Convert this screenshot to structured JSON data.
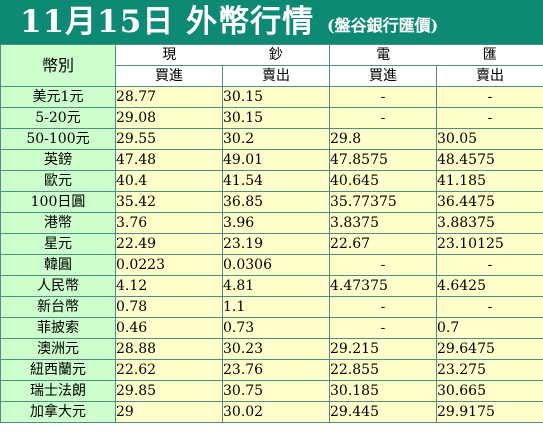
{
  "header": {
    "title": "11月15日 外幣行情",
    "subtitle": "(盤谷銀行匯價)"
  },
  "table": {
    "corner_label": "幣別",
    "cash_group": [
      "現",
      "鈔"
    ],
    "wire_group": [
      "電",
      "匯"
    ],
    "sub_headers": [
      "買進",
      "賣出",
      "買進",
      "賣出"
    ],
    "rows": [
      {
        "name": "美元1元",
        "cash_buy": "28.77",
        "cash_sell": "30.15",
        "wire_buy": "-",
        "wire_sell": "-"
      },
      {
        "name": "5-20元",
        "cash_buy": "29.08",
        "cash_sell": "30.15",
        "wire_buy": "-",
        "wire_sell": "-"
      },
      {
        "name": "50-100元",
        "cash_buy": "29.55",
        "cash_sell": "30.2",
        "wire_buy": "29.8",
        "wire_sell": "30.05"
      },
      {
        "name": "英鎊",
        "cash_buy": "47.48",
        "cash_sell": "49.01",
        "wire_buy": "47.8575",
        "wire_sell": "48.4575"
      },
      {
        "name": "歐元",
        "cash_buy": "40.4",
        "cash_sell": "41.54",
        "wire_buy": "40.645",
        "wire_sell": "41.185"
      },
      {
        "name": "100日圓",
        "cash_buy": "35.42",
        "cash_sell": "36.85",
        "wire_buy": "35.77375",
        "wire_sell": "36.4475"
      },
      {
        "name": "港幣",
        "cash_buy": "3.76",
        "cash_sell": "3.96",
        "wire_buy": "3.8375",
        "wire_sell": "3.88375"
      },
      {
        "name": "星元",
        "cash_buy": "22.49",
        "cash_sell": "23.19",
        "wire_buy": "22.67",
        "wire_sell": "23.10125"
      },
      {
        "name": "韓圓",
        "cash_buy": "0.0223",
        "cash_sell": "0.0306",
        "wire_buy": "-",
        "wire_sell": "-"
      },
      {
        "name": "人民幣",
        "cash_buy": "4.12",
        "cash_sell": "4.81",
        "wire_buy": "4.47375",
        "wire_sell": "4.6425"
      },
      {
        "name": "新台幣",
        "cash_buy": "0.78",
        "cash_sell": "1.1",
        "wire_buy": "-",
        "wire_sell": "-"
      },
      {
        "name": "菲披索",
        "cash_buy": "0.46",
        "cash_sell": "0.73",
        "wire_buy": "-",
        "wire_sell": "0.7"
      },
      {
        "name": "澳洲元",
        "cash_buy": "28.88",
        "cash_sell": "30.23",
        "wire_buy": "29.215",
        "wire_sell": "29.6475"
      },
      {
        "name": "紐西蘭元",
        "cash_buy": "22.62",
        "cash_sell": "23.76",
        "wire_buy": "22.855",
        "wire_sell": "23.275"
      },
      {
        "name": "瑞士法朗",
        "cash_buy": "29.85",
        "cash_sell": "30.75",
        "wire_buy": "30.185",
        "wire_sell": "30.665"
      },
      {
        "name": "加拿大元",
        "cash_buy": "29",
        "cash_sell": "30.02",
        "wire_buy": "29.445",
        "wire_sell": "29.9175"
      }
    ]
  },
  "colors": {
    "header_bg": "#0e8a74",
    "name_col_bg": "#ccffcc",
    "value_bg": "#ffffcc",
    "grid": "#4d8f86"
  }
}
